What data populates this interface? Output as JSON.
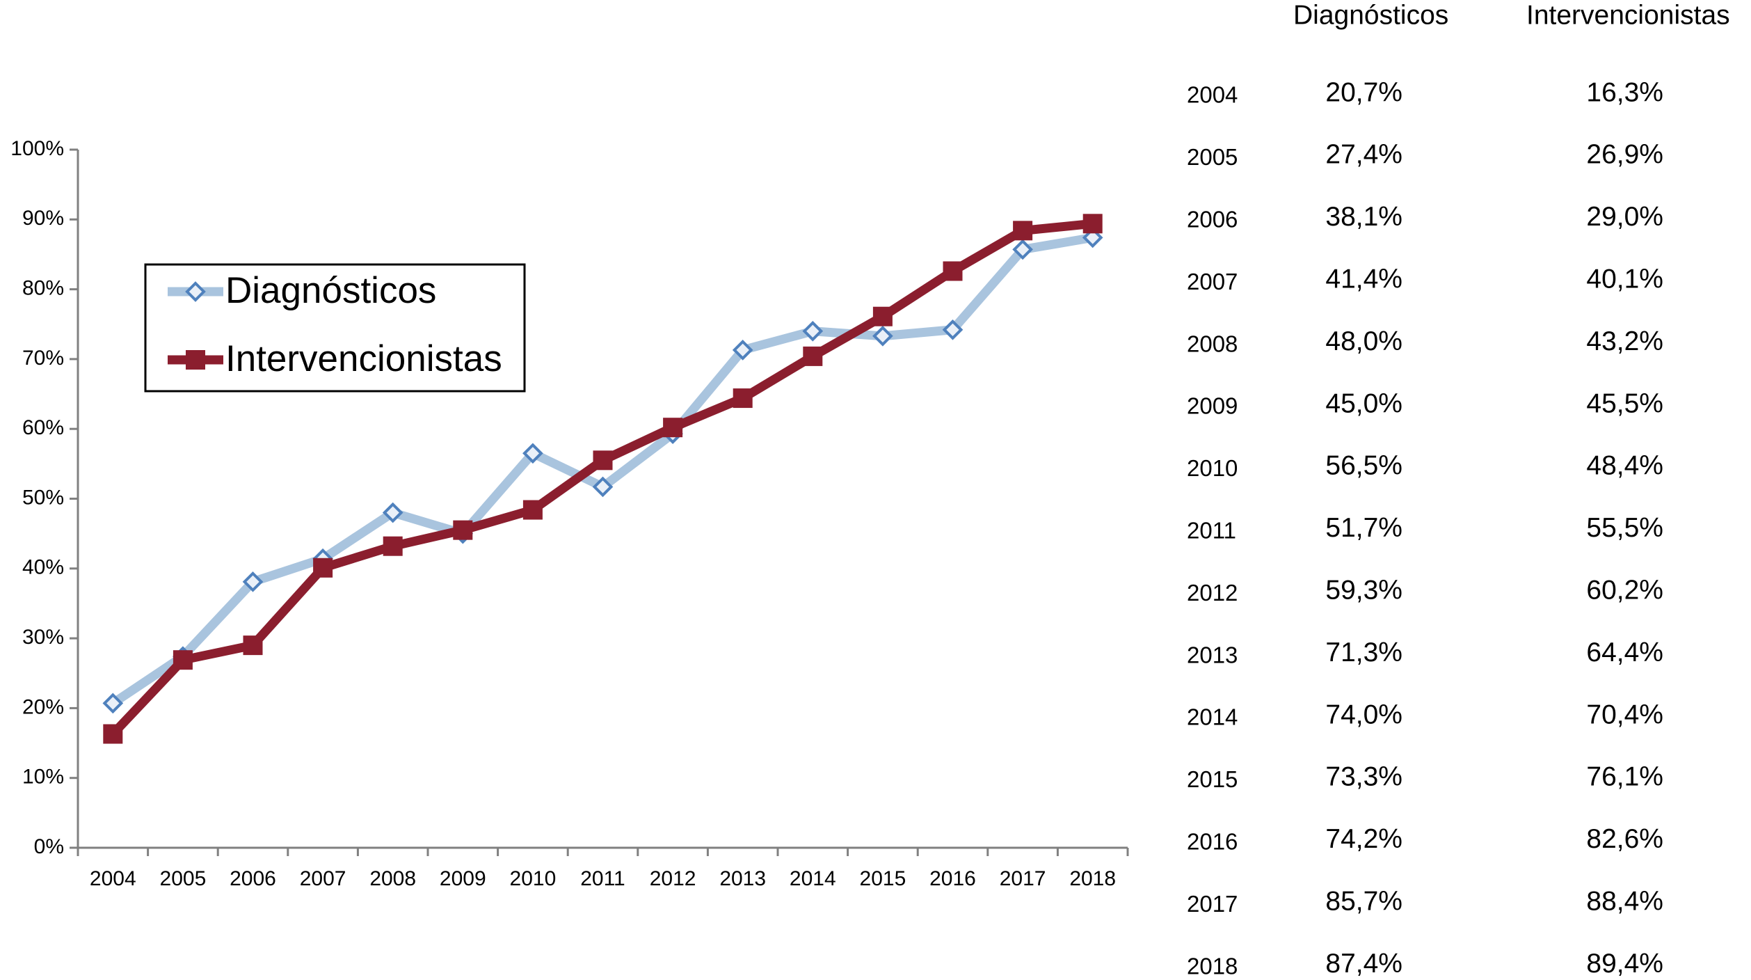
{
  "chart_data": {
    "type": "line",
    "categories": [
      "2004",
      "2005",
      "2006",
      "2007",
      "2008",
      "2009",
      "2010",
      "2011",
      "2012",
      "2013",
      "2014",
      "2015",
      "2016",
      "2017",
      "2018"
    ],
    "series": [
      {
        "name": "Diagnósticos",
        "color": "#a9c4de",
        "marker_color": "#4f81bd",
        "marker": "diamond",
        "values": [
          20.7,
          27.4,
          38.1,
          41.4,
          48.0,
          45.0,
          56.5,
          51.7,
          59.3,
          71.3,
          74.0,
          73.3,
          74.2,
          85.7,
          87.4
        ],
        "value_labels": [
          "20,7%",
          "27,4%",
          "38,1%",
          "41,4%",
          "48,0%",
          "45,0%",
          "56,5%",
          "51,7%",
          "59,3%",
          "71,3%",
          "74,0%",
          "73,3%",
          "74,2%",
          "85,7%",
          "87,4%"
        ]
      },
      {
        "name": "Intervencionistas",
        "color": "#8b1e2e",
        "marker_color": "#8b1e2e",
        "marker": "square",
        "values": [
          16.3,
          26.9,
          29.0,
          40.1,
          43.2,
          45.5,
          48.4,
          55.5,
          60.2,
          64.4,
          70.4,
          76.1,
          82.6,
          88.4,
          89.4
        ],
        "value_labels": [
          "16,3%",
          "26,9%",
          "29,0%",
          "40,1%",
          "43,2%",
          "45,5%",
          "48,4%",
          "55,5%",
          "60,2%",
          "64,4%",
          "70,4%",
          "76,1%",
          "82,6%",
          "88,4%",
          "89,4%"
        ]
      }
    ],
    "ylim": [
      0,
      100
    ],
    "yticks": [
      {
        "value": 0,
        "label": "0%"
      },
      {
        "value": 10,
        "label": "10%"
      },
      {
        "value": 20,
        "label": "20%"
      },
      {
        "value": 30,
        "label": "30%"
      },
      {
        "value": 40,
        "label": "40%"
      },
      {
        "value": 50,
        "label": "50%"
      },
      {
        "value": 60,
        "label": "60%"
      },
      {
        "value": 70,
        "label": "70%"
      },
      {
        "value": 80,
        "label": "80%"
      },
      {
        "value": 90,
        "label": "90%"
      },
      {
        "value": 100,
        "label": "100%"
      }
    ],
    "grid": false,
    "legend": "upper left"
  }
}
